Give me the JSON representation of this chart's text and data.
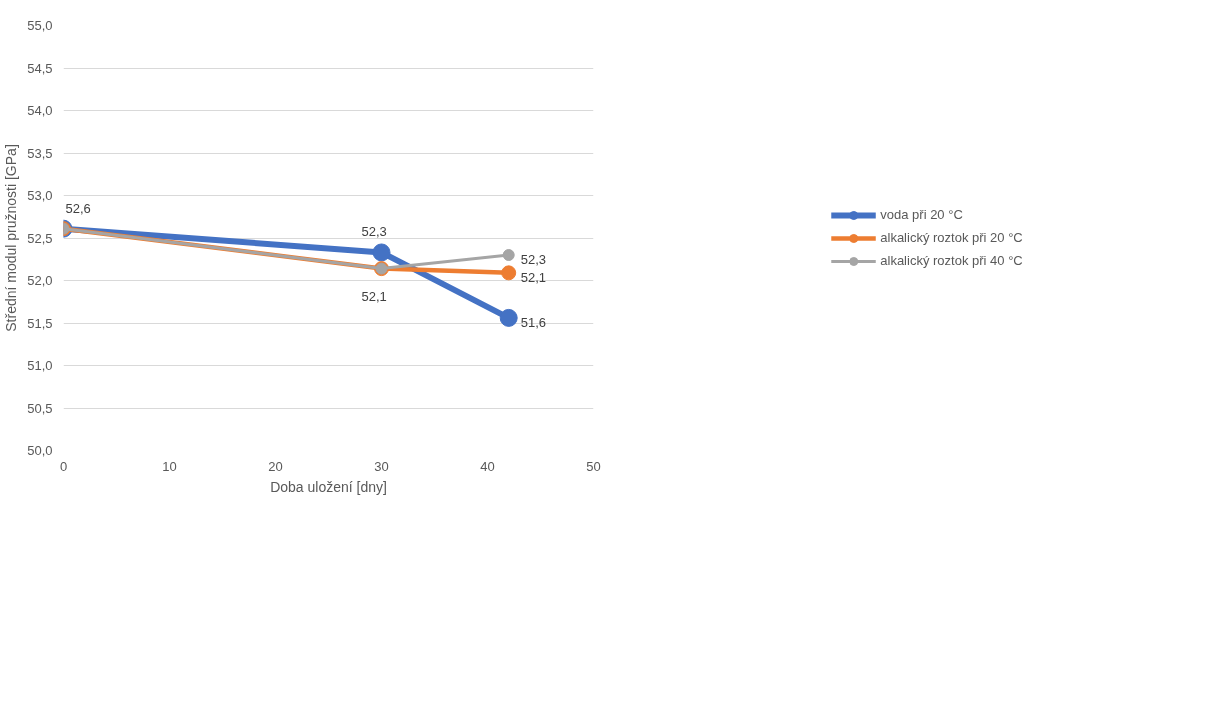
{
  "chart_data": {
    "type": "line",
    "xlabel": "Doba uložení [dny]",
    "ylabel": "Střední modul pružnosti [GPa]",
    "x": [
      0,
      30,
      42
    ],
    "series": [
      {
        "name": "voda při 20 °C",
        "color": "#4472c4",
        "values": [
          52.61,
          52.33,
          51.56
        ],
        "value_labels": [
          "52,6",
          "52,3",
          "51,6"
        ]
      },
      {
        "name": "alkalický roztok při 20 °C",
        "color": "#ed7d31",
        "values": [
          52.61,
          52.14,
          52.09
        ],
        "value_labels": [
          null,
          "52,1",
          "52,1"
        ]
      },
      {
        "name": "alkalický roztok při 40 °C",
        "color": "#a5a5a5",
        "values": [
          52.61,
          52.14,
          52.3
        ],
        "value_labels": [
          null,
          null,
          "52,3"
        ]
      }
    ],
    "xlim": [
      0,
      50
    ],
    "xticks": [
      0,
      10,
      20,
      30,
      40,
      50
    ],
    "ylim": [
      50,
      55
    ],
    "yticks": [
      {
        "value": 50,
        "label": "50,0"
      },
      {
        "value": 50.5,
        "label": "50,5"
      },
      {
        "value": 51,
        "label": "51,0"
      },
      {
        "value": 51.5,
        "label": "51,5"
      },
      {
        "value": 52,
        "label": "52,0"
      },
      {
        "value": 52.5,
        "label": "52,5"
      },
      {
        "value": 53,
        "label": "53,0"
      },
      {
        "value": 53.5,
        "label": "53,5"
      },
      {
        "value": 54,
        "label": "54,0"
      },
      {
        "value": 54.5,
        "label": "54,5"
      },
      {
        "value": 55,
        "label": "55,0"
      }
    ],
    "grid": "y",
    "legend": "right",
    "marker": "circle",
    "line_style": "solid"
  }
}
